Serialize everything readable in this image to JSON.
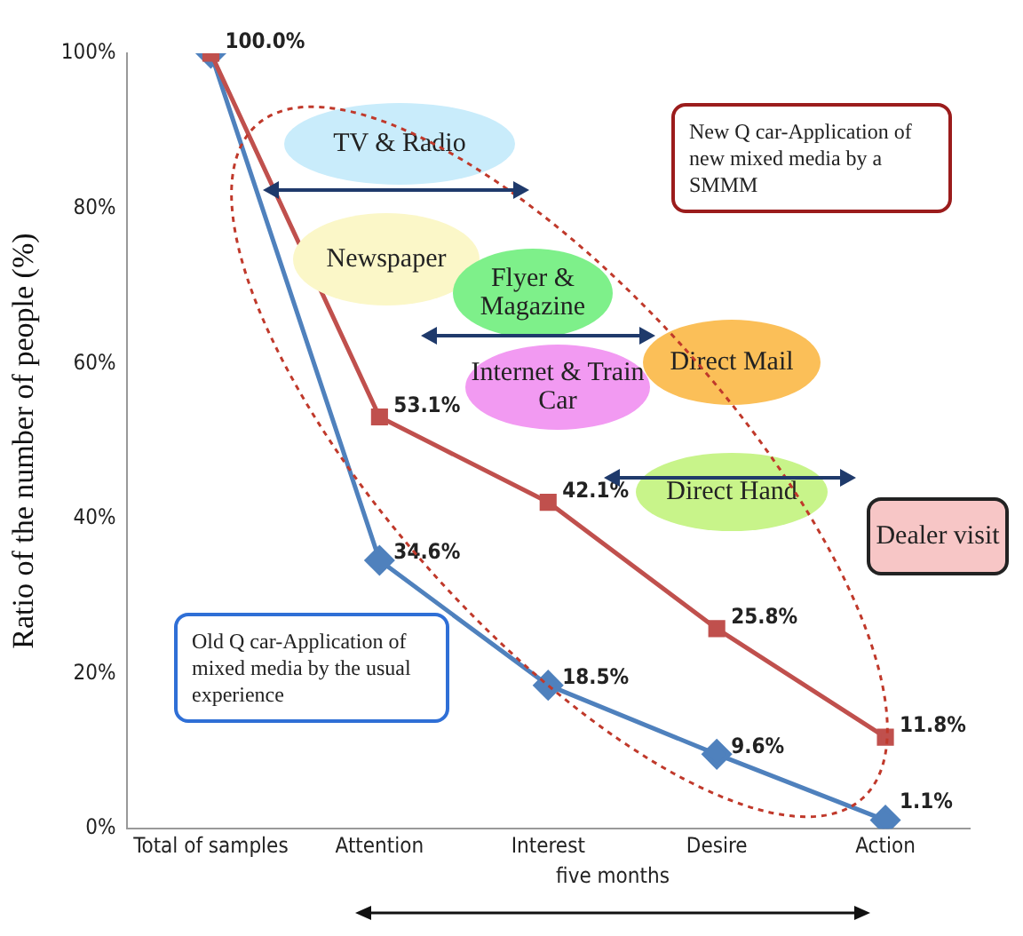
{
  "chart_data": {
    "type": "line",
    "ylabel": "Ratio of the number of people (%)",
    "categories": [
      "Total of samples",
      "Attention",
      "Interest",
      "Desire",
      "Action"
    ],
    "ylim": [
      0,
      100
    ],
    "yticks": [
      {
        "value": 0,
        "label": "0%"
      },
      {
        "value": 20,
        "label": "20%"
      },
      {
        "value": 40,
        "label": "40%"
      },
      {
        "value": 60,
        "label": "60%"
      },
      {
        "value": 80,
        "label": "80%"
      },
      {
        "value": 100,
        "label": "100%"
      }
    ],
    "grid": false,
    "legend": false,
    "line_style": "solid",
    "series": [
      {
        "color": "#c0504d",
        "marker": "square",
        "values": [
          100,
          53.1,
          42.1,
          25.8,
          11.8
        ],
        "value_labels": [
          "100.0%",
          "53.1%",
          "42.1%",
          "25.8%",
          "11.8%"
        ]
      },
      {
        "color": "#4f81bd",
        "marker": "diamond",
        "values": [
          100,
          34.6,
          18.5,
          9.6,
          1.1
        ],
        "value_labels": [
          null,
          "34.6%",
          "18.5%",
          "9.6%",
          "1.1%"
        ]
      }
    ],
    "annotations": [
      "TV & Radio",
      "Newspaper",
      "Flyer & Magazine",
      "Internet & Train Car",
      "Direct Mail",
      "Direct Hand",
      "New Q car-Application of new mixed media by a SMMM",
      "Old Q car-Application of mixed media by the usual experience",
      "Dealer visit",
      "five months"
    ]
  }
}
